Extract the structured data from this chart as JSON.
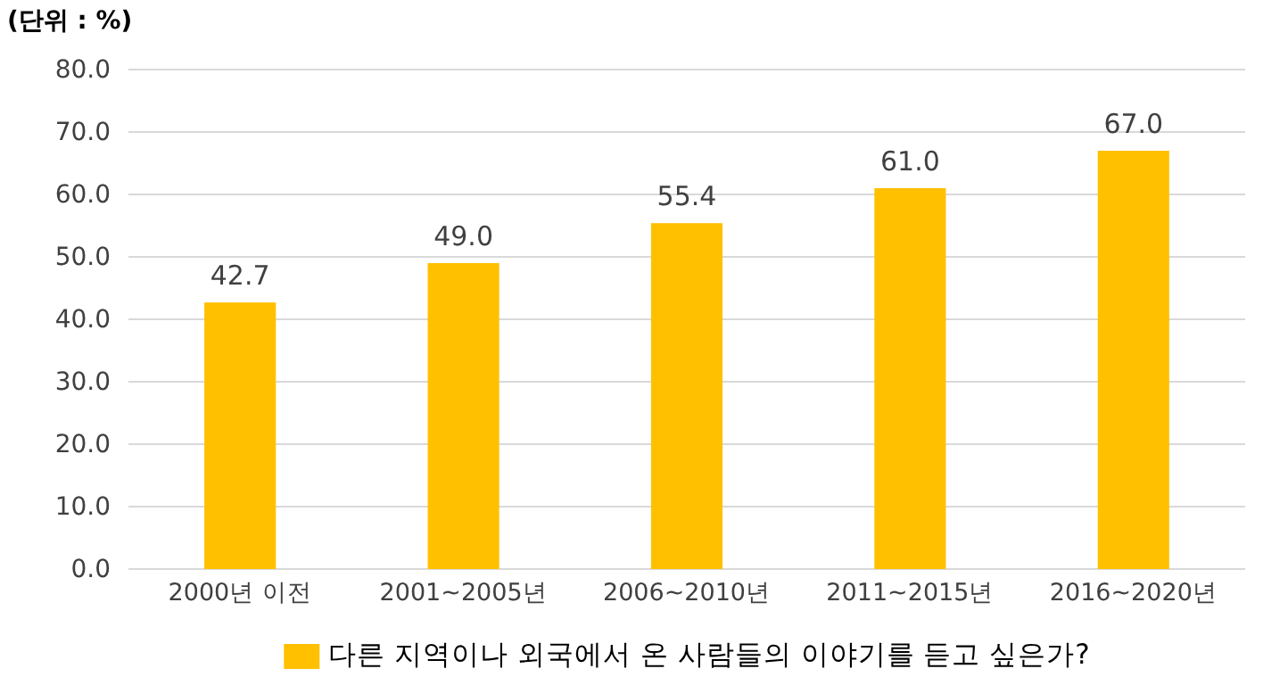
{
  "chart_data": {
    "type": "bar",
    "annotations": [
      "(단위 : %)"
    ],
    "categories": [
      "2000년 이전",
      "2001~2005년",
      "2006~2010년",
      "2011~2015년",
      "2016~2020년"
    ],
    "series": [
      {
        "name": "다른 지역이나 외국에서 온 사람들의 이야기를 듣고 싶은가?",
        "color": "#ffc000",
        "values": [
          42.7,
          49.0,
          55.4,
          61.0,
          67.0
        ]
      }
    ],
    "ylim": [
      0,
      80
    ],
    "yticks": [
      {
        "value": 0,
        "label": "0.0"
      },
      {
        "value": 10,
        "label": "10.0"
      },
      {
        "value": 20,
        "label": "20.0"
      },
      {
        "value": 30,
        "label": "30.0"
      },
      {
        "value": 40,
        "label": "40.0"
      },
      {
        "value": 50,
        "label": "50.0"
      },
      {
        "value": 60,
        "label": "60.0"
      },
      {
        "value": 70,
        "label": "70.0"
      },
      {
        "value": 80,
        "label": "80.0"
      }
    ],
    "value_labels": [
      "42.7",
      "49.0",
      "55.4",
      "61.0",
      "67.0"
    ],
    "grid": "y",
    "legend": "bottom"
  }
}
